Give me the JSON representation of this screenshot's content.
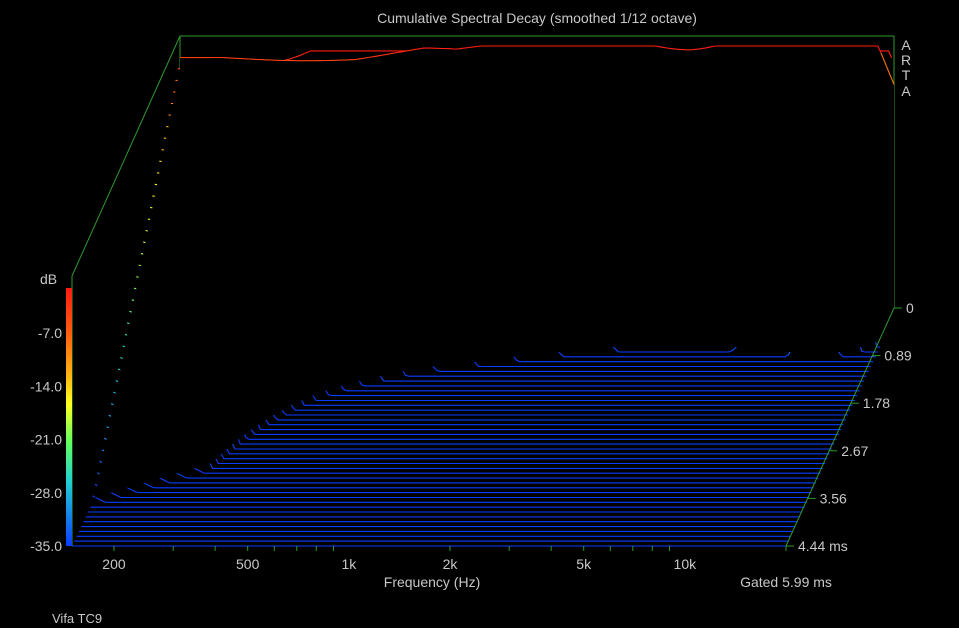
{
  "chart_data": {
    "type": "waterfall",
    "title": "Cumulative Spectral Decay (smoothed 1/12 octave)",
    "xlabel": "Frequency (Hz)",
    "xscale": "log",
    "xlim": [
      150,
      20000
    ],
    "x_ticks": [
      {
        "value": 200,
        "label": "200"
      },
      {
        "value": 500,
        "label": "500"
      },
      {
        "value": 1000,
        "label": "1k"
      },
      {
        "value": 2000,
        "label": "2k"
      },
      {
        "value": 5000,
        "label": "5k"
      },
      {
        "value": 10000,
        "label": "10k"
      }
    ],
    "zlabel": "dB",
    "zlim": [
      -35,
      0
    ],
    "z_ticks": [
      "-7.0",
      "-14.0",
      "-21.0",
      "-28.0",
      "-35.0"
    ],
    "time_ticks": [
      "0",
      "0.89",
      "1.78",
      "2.67",
      "3.56",
      "4.44 ms"
    ],
    "time_range_ms": [
      0,
      4.44
    ],
    "slice_count": 48,
    "colorscale": [
      "#0a3cff",
      "#18a8ff",
      "#20e0c0",
      "#a0ff40",
      "#ffff20",
      "#ff9a10",
      "#ff1a10"
    ],
    "gate_label": "Gated 5.99 ms",
    "watermark": [
      "A",
      "R",
      "T",
      "A"
    ],
    "footer_label": "Vifa TC9",
    "profiles": {
      "first_slice_db": [
        [
          150,
          -1.5
        ],
        [
          200,
          -1.5
        ],
        [
          300,
          -2.0
        ],
        [
          500,
          -2.5
        ],
        [
          800,
          -2.0
        ],
        [
          1000,
          -2.5
        ],
        [
          1500,
          -2.0
        ],
        [
          2000,
          -2.5
        ],
        [
          3000,
          -2.0
        ],
        [
          5000,
          -2.0
        ],
        [
          7000,
          -1.5
        ],
        [
          10000,
          -1.5
        ],
        [
          13000,
          -0.5
        ],
        [
          16000,
          0
        ],
        [
          18000,
          -2
        ],
        [
          20000,
          -6
        ]
      ],
      "features": [
        {
          "freq_hz": 1100,
          "width_oct": 0.35,
          "amp_db": 10,
          "decay_ms": 2.4
        },
        {
          "freq_hz": 2400,
          "width_oct": 0.25,
          "amp_db": 7,
          "decay_ms": 1.4
        },
        {
          "freq_hz": 3300,
          "width_oct": 0.18,
          "amp_db": 6,
          "decay_ms": 1.0
        },
        {
          "freq_hz": 6500,
          "width_oct": 0.15,
          "amp_db": 6,
          "decay_ms": 1.1
        },
        {
          "freq_hz": 9000,
          "width_oct": 0.15,
          "amp_db": 8,
          "decay_ms": 1.5
        },
        {
          "freq_hz": 12500,
          "width_oct": 0.12,
          "amp_db": 10,
          "decay_ms": 1.8
        },
        {
          "freq_hz": 16000,
          "width_oct": 0.12,
          "amp_db": 9,
          "decay_ms": 1.6
        }
      ]
    }
  }
}
